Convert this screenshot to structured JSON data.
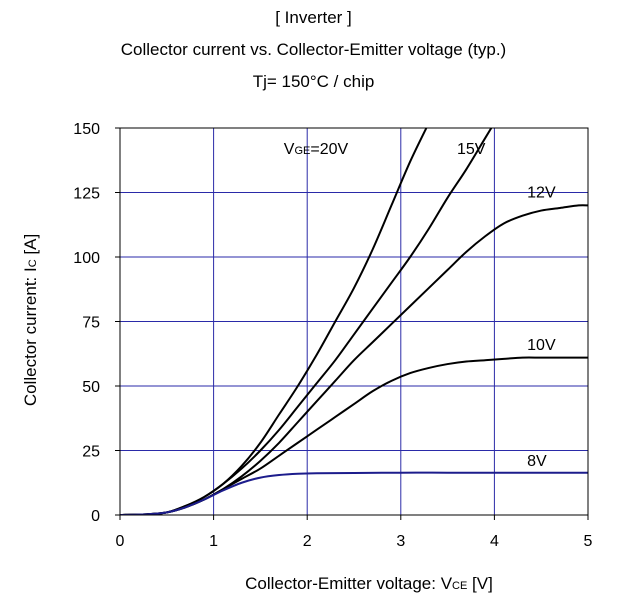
{
  "chart_data": {
    "type": "line",
    "title": "[ Inverter ]",
    "subtitle": "Collector current vs. Collector-Emitter voltage (typ.)",
    "condition": "Tj= 150°C / chip",
    "xlabel": {
      "main": "Collector-Emitter voltage: V",
      "sub": "CE",
      "unit": " [V]"
    },
    "ylabel": {
      "main": "Collector current: I",
      "sub": "C",
      "unit": " [A]"
    },
    "xlim": [
      0,
      5
    ],
    "ylim": [
      0,
      150
    ],
    "xticks": [
      0,
      1,
      2,
      3,
      4,
      5
    ],
    "yticks": [
      0,
      25,
      50,
      75,
      100,
      125,
      150
    ],
    "xtick_labels": [
      "0",
      "1",
      "2",
      "3",
      "4",
      "5"
    ],
    "ytick_labels": [
      "0",
      "25",
      "50",
      "75",
      "100",
      "125",
      "150"
    ],
    "grid": true,
    "colors": {
      "grid": "#2a2aa8",
      "curve": "#000000",
      "curve_8v": "#1c1c8c",
      "frame": "#000000"
    },
    "series": [
      {
        "name": "VGE=20V",
        "label_parts": {
          "pre": "V",
          "sub": "GE",
          "post": "=20V"
        },
        "points": [
          [
            0,
            0
          ],
          [
            0.3,
            0.3
          ],
          [
            0.5,
            1
          ],
          [
            0.7,
            3.5
          ],
          [
            0.9,
            7
          ],
          [
            1.1,
            12
          ],
          [
            1.3,
            19
          ],
          [
            1.5,
            28
          ],
          [
            1.7,
            39
          ],
          [
            1.9,
            50
          ],
          [
            2.1,
            62
          ],
          [
            2.3,
            75
          ],
          [
            2.5,
            88
          ],
          [
            2.7,
            103
          ],
          [
            2.9,
            120
          ],
          [
            3.1,
            137
          ],
          [
            3.3,
            152
          ]
        ]
      },
      {
        "name": "15V",
        "label_parts": {
          "pre": "15V",
          "sub": "",
          "post": ""
        },
        "points": [
          [
            0,
            0
          ],
          [
            0.3,
            0.3
          ],
          [
            0.5,
            1
          ],
          [
            0.7,
            3.5
          ],
          [
            0.9,
            7
          ],
          [
            1.1,
            12
          ],
          [
            1.3,
            18
          ],
          [
            1.5,
            25
          ],
          [
            1.7,
            33
          ],
          [
            1.9,
            42
          ],
          [
            2.1,
            51
          ],
          [
            2.3,
            60
          ],
          [
            2.5,
            70
          ],
          [
            2.7,
            80
          ],
          [
            2.9,
            90
          ],
          [
            3.1,
            100
          ],
          [
            3.3,
            111
          ],
          [
            3.5,
            123
          ],
          [
            3.7,
            134
          ],
          [
            3.9,
            146
          ],
          [
            4.0,
            152
          ]
        ]
      },
      {
        "name": "12V",
        "label_parts": {
          "pre": "12V",
          "sub": "",
          "post": ""
        },
        "points": [
          [
            0,
            0
          ],
          [
            0.3,
            0.3
          ],
          [
            0.5,
            1
          ],
          [
            0.7,
            3
          ],
          [
            0.9,
            6
          ],
          [
            1.1,
            10
          ],
          [
            1.3,
            15
          ],
          [
            1.5,
            21
          ],
          [
            1.7,
            28
          ],
          [
            1.9,
            36
          ],
          [
            2.1,
            44
          ],
          [
            2.3,
            52
          ],
          [
            2.5,
            60
          ],
          [
            2.7,
            67
          ],
          [
            2.9,
            74
          ],
          [
            3.1,
            81
          ],
          [
            3.3,
            88
          ],
          [
            3.5,
            95
          ],
          [
            3.7,
            102
          ],
          [
            3.9,
            108
          ],
          [
            4.1,
            113
          ],
          [
            4.3,
            116
          ],
          [
            4.5,
            118
          ],
          [
            4.7,
            119
          ],
          [
            4.9,
            120
          ],
          [
            5.0,
            120
          ]
        ]
      },
      {
        "name": "10V",
        "label_parts": {
          "pre": "10V",
          "sub": "",
          "post": ""
        },
        "points": [
          [
            0,
            0
          ],
          [
            0.3,
            0.3
          ],
          [
            0.5,
            1
          ],
          [
            0.7,
            3
          ],
          [
            0.9,
            6
          ],
          [
            1.1,
            10
          ],
          [
            1.3,
            14
          ],
          [
            1.5,
            18
          ],
          [
            1.7,
            23
          ],
          [
            1.9,
            28
          ],
          [
            2.1,
            33
          ],
          [
            2.3,
            38
          ],
          [
            2.5,
            43
          ],
          [
            2.7,
            48
          ],
          [
            2.9,
            52
          ],
          [
            3.1,
            55
          ],
          [
            3.3,
            57
          ],
          [
            3.5,
            58.5
          ],
          [
            3.7,
            59.5
          ],
          [
            3.9,
            60
          ],
          [
            4.1,
            60.5
          ],
          [
            4.3,
            61
          ],
          [
            4.5,
            61
          ],
          [
            4.7,
            61
          ],
          [
            5.0,
            61
          ]
        ]
      },
      {
        "name": "8V",
        "label_parts": {
          "pre": "8V",
          "sub": "",
          "post": ""
        },
        "points": [
          [
            0,
            0
          ],
          [
            0.3,
            0.3
          ],
          [
            0.5,
            1
          ],
          [
            0.7,
            3
          ],
          [
            0.9,
            6
          ],
          [
            1.1,
            9.5
          ],
          [
            1.3,
            12.5
          ],
          [
            1.5,
            14.5
          ],
          [
            1.7,
            15.5
          ],
          [
            1.9,
            16
          ],
          [
            2.1,
            16.2
          ],
          [
            2.5,
            16.3
          ],
          [
            3.0,
            16.4
          ],
          [
            3.5,
            16.4
          ],
          [
            4.0,
            16.4
          ],
          [
            4.5,
            16.4
          ],
          [
            5.0,
            16.4
          ]
        ]
      }
    ]
  }
}
